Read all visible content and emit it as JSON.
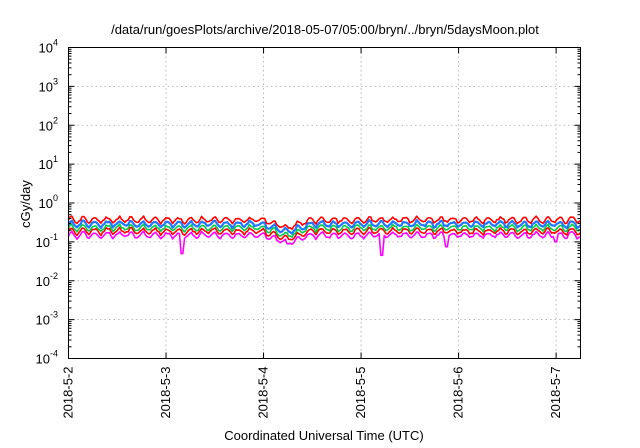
{
  "chart_data": {
    "type": "line",
    "title": "/data/run/goesPlots/archive/2018-05-07/05:00/bryn/../bryn/5daysMoon.plot",
    "xlabel": "Coordinated Universal Time (UTC)",
    "ylabel": "cGy/day",
    "yscale": "log",
    "ylim": [
      0.0001,
      10000
    ],
    "y_ticks": [
      {
        "base": "10",
        "exp": "-4"
      },
      {
        "base": "10",
        "exp": "-3"
      },
      {
        "base": "10",
        "exp": "-2"
      },
      {
        "base": "10",
        "exp": "-1"
      },
      {
        "base": "10",
        "exp": "0"
      },
      {
        "base": "10",
        "exp": "1"
      },
      {
        "base": "10",
        "exp": "2"
      },
      {
        "base": "10",
        "exp": "3"
      },
      {
        "base": "10",
        "exp": "4"
      }
    ],
    "xlim": [
      "2018-05-02",
      "2018-05-07 06:00"
    ],
    "x_ticks": [
      "2018-5-2",
      "2018-5-3",
      "2018-5-4",
      "2018-5-5",
      "2018-5-6",
      "2018-5-7"
    ],
    "grid": true,
    "series": [
      {
        "color": "#ff00ff",
        "baseline": 0.15,
        "dips": [
          {
            "x": "2018-05-03 04:00",
            "y": 0.05
          },
          {
            "x": "2018-05-04 06:00",
            "y": 0.09
          },
          {
            "x": "2018-05-05 05:00",
            "y": 0.045
          },
          {
            "x": "2018-05-05 21:00",
            "y": 0.075
          },
          {
            "x": "2018-05-07 00:00",
            "y": 0.1
          }
        ]
      },
      {
        "color": "#ff0000",
        "baseline": 0.19
      },
      {
        "color": "#00cc44",
        "baseline": 0.23
      },
      {
        "color": "#1e78ff",
        "baseline": 0.29
      },
      {
        "color": "#ff0000",
        "baseline": 0.37
      }
    ]
  }
}
